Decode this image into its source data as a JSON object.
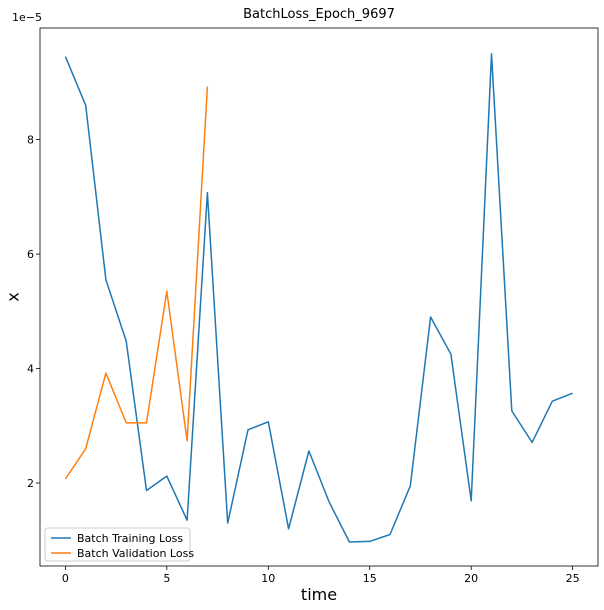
{
  "chart_data": {
    "type": "line",
    "title": "BatchLoss_Epoch_9697",
    "xlabel": "time",
    "ylabel": "x",
    "y_offset_label": "1e−5",
    "xlim": [
      -1.25,
      26.25
    ],
    "ylim": [
      0.55,
      9.95
    ],
    "x_ticks": [
      0,
      5,
      10,
      15,
      20,
      25
    ],
    "y_ticks": [
      2,
      4,
      6,
      8
    ],
    "grid": false,
    "legend_position": "lower-left",
    "series": [
      {
        "name": "Batch Training Loss",
        "color": "#1f77b4",
        "x": [
          0,
          1,
          2,
          3,
          4,
          5,
          6,
          7,
          8,
          9,
          10,
          11,
          12,
          13,
          14,
          15,
          16,
          17,
          18,
          19,
          20,
          21,
          22,
          23,
          24,
          25
        ],
        "y": [
          9.45,
          8.6,
          5.55,
          4.48,
          1.87,
          2.12,
          1.35,
          7.07,
          1.3,
          2.93,
          3.07,
          1.2,
          2.56,
          1.67,
          0.97,
          0.98,
          1.1,
          1.95,
          4.9,
          4.25,
          1.69,
          9.5,
          3.26,
          2.71,
          3.43,
          3.57
        ]
      },
      {
        "name": "Batch Validation Loss",
        "color": "#ff7f0e",
        "x": [
          0,
          1,
          2,
          3,
          4,
          5,
          6,
          7
        ],
        "y": [
          2.07,
          2.6,
          3.92,
          3.05,
          3.05,
          5.35,
          2.74,
          8.93
        ]
      }
    ]
  }
}
